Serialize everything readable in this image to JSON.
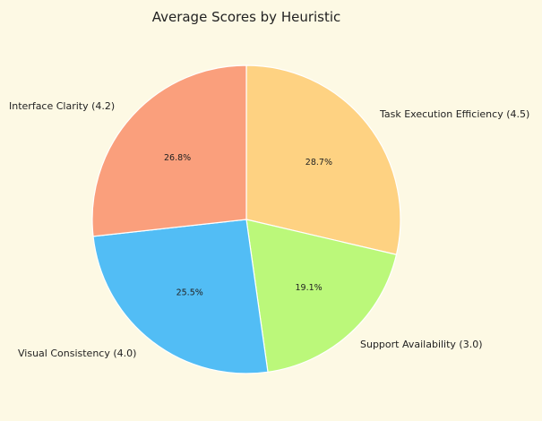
{
  "chart_data": {
    "type": "pie",
    "title": "Average Scores by Heuristic",
    "slices": [
      {
        "category": "Task Execution Efficiency",
        "label": "Task Execution Efficiency (4.5)",
        "value": 4.5,
        "percent_label": "28.7%",
        "color": "#fed282"
      },
      {
        "category": "Support Availability",
        "label": "Support Availability (3.0)",
        "value": 3.0,
        "percent_label": "19.1%",
        "color": "#bbf87a"
      },
      {
        "category": "Visual Consistency",
        "label": "Visual Consistency (4.0)",
        "value": 4.0,
        "percent_label": "25.5%",
        "color": "#52bdf5"
      },
      {
        "category": "Interface Clarity",
        "label": "Interface Clarity (4.2)",
        "value": 4.2,
        "percent_label": "26.8%",
        "color": "#fa9f7c"
      }
    ],
    "start_angle": "top",
    "direction": "clockwise"
  }
}
